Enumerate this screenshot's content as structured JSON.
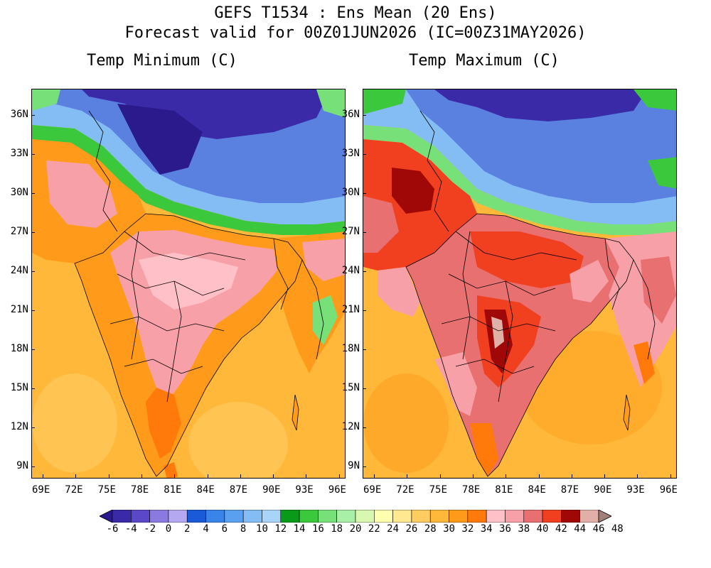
{
  "header": {
    "line1": "GEFS T1534 : Ens Mean (20 Ens)",
    "line2": "Forecast valid for 00Z01JUN2026 (IC=00Z31MAY2026)"
  },
  "panels": [
    {
      "title": "Temp Minimum (C)"
    },
    {
      "title": "Temp Maximum (C)"
    }
  ],
  "lat_ticks": [
    "36N",
    "33N",
    "30N",
    "27N",
    "24N",
    "21N",
    "18N",
    "15N",
    "12N",
    "9N"
  ],
  "lon_ticks": [
    "69E",
    "72E",
    "75E",
    "78E",
    "81E",
    "84E",
    "87E",
    "90E",
    "93E",
    "96E"
  ],
  "colorbar": {
    "labels": [
      "-6",
      "-4",
      "-2",
      "0",
      "2",
      "4",
      "6",
      "8",
      "10",
      "12",
      "14",
      "16",
      "18",
      "20",
      "22",
      "24",
      "26",
      "28",
      "30",
      "32",
      "34",
      "36",
      "38",
      "40",
      "42",
      "44",
      "46",
      "48"
    ],
    "colors": [
      "#2a1a8c",
      "#3a2aa8",
      "#5a48c8",
      "#8a7ae0",
      "#b4a8f0",
      "#1a5ad8",
      "#3a84e8",
      "#5aa0f0",
      "#84bcf4",
      "#a8d4f8",
      "#0a9a1a",
      "#3cc83c",
      "#78e078",
      "#a8f0a8",
      "#d8f8b0",
      "#ffffb0",
      "#ffe890",
      "#ffcc60",
      "#ffb83a",
      "#ff9a1a",
      "#ff7a0a",
      "#ffc0c8",
      "#f8a0a8",
      "#e87070",
      "#f04020",
      "#a00808",
      "#e0b0a8",
      "#a08078"
    ]
  },
  "map_legend_colors": {
    "cold_deep": "#3a2aa8",
    "cold": "#5a80e0",
    "cool": "#84bcf4",
    "green": "#3cc83c",
    "ocean": "#ffb83a",
    "warm": "#ff9a1a",
    "hot_pink": "#f8a0a8",
    "very_hot": "#f04020",
    "extreme": "#a00808"
  }
}
